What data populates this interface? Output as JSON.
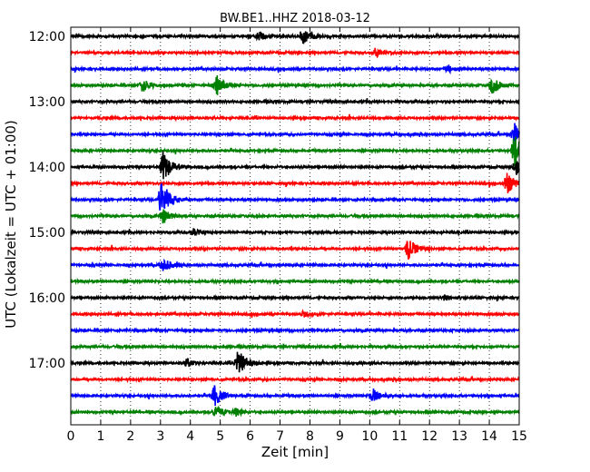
{
  "chart_data": {
    "type": "line",
    "subtype": "helicorder",
    "title": "BW.BE1..HHZ 2018-03-12",
    "xlabel": "Zeit  [min]",
    "ylabel": "UTC (Lokalzeit = UTC + 01:00)",
    "xlim": [
      0,
      15
    ],
    "x_ticks": [
      0,
      1,
      2,
      3,
      4,
      5,
      6,
      7,
      8,
      9,
      10,
      11,
      12,
      13,
      14,
      15
    ],
    "y_tick_labels": [
      "12:00",
      "13:00",
      "14:00",
      "15:00",
      "16:00",
      "17:00"
    ],
    "trace_start_times": [
      "12:00",
      "12:15",
      "12:30",
      "12:45",
      "13:00",
      "13:15",
      "13:30",
      "13:45",
      "14:00",
      "14:15",
      "14:30",
      "14:45",
      "15:00",
      "15:15",
      "15:30",
      "15:45",
      "16:00",
      "16:15",
      "16:30",
      "16:45",
      "17:00",
      "17:15",
      "17:30",
      "17:45"
    ],
    "trace_colors": [
      "#000000",
      "#ff0000",
      "#0000ff",
      "#008000"
    ],
    "grid": "vertical dotted lines at each minute",
    "events": [
      {
        "trace": 0,
        "minute": 6.3,
        "amplitude": 0.6
      },
      {
        "trace": 0,
        "minute": 7.8,
        "amplitude": 1.0
      },
      {
        "trace": 1,
        "minute": 10.2,
        "amplitude": 0.55
      },
      {
        "trace": 2,
        "minute": 12.6,
        "amplitude": 0.5
      },
      {
        "trace": 3,
        "minute": 2.4,
        "amplitude": 0.8
      },
      {
        "trace": 3,
        "minute": 4.9,
        "amplitude": 1.2
      },
      {
        "trace": 3,
        "minute": 14.1,
        "amplitude": 1.1
      },
      {
        "trace": 6,
        "minute": 14.85,
        "amplitude": 1.3
      },
      {
        "trace": 7,
        "minute": 14.85,
        "amplitude": 2.0
      },
      {
        "trace": 8,
        "minute": 3.1,
        "amplitude": 2.0
      },
      {
        "trace": 8,
        "minute": 14.9,
        "amplitude": 1.2
      },
      {
        "trace": 9,
        "minute": 14.6,
        "amplitude": 1.4
      },
      {
        "trace": 10,
        "minute": 3.05,
        "amplitude": 2.4
      },
      {
        "trace": 11,
        "minute": 3.1,
        "amplitude": 0.9
      },
      {
        "trace": 12,
        "minute": 4.1,
        "amplitude": 0.45
      },
      {
        "trace": 13,
        "minute": 11.3,
        "amplitude": 1.4
      },
      {
        "trace": 14,
        "minute": 3.1,
        "amplitude": 0.8
      },
      {
        "trace": 16,
        "minute": 12.5,
        "amplitude": 0.35
      },
      {
        "trace": 17,
        "minute": 7.8,
        "amplitude": 0.35
      },
      {
        "trace": 20,
        "minute": 3.9,
        "amplitude": 0.5
      },
      {
        "trace": 20,
        "minute": 5.6,
        "amplitude": 2.0
      },
      {
        "trace": 22,
        "minute": 4.8,
        "amplitude": 1.4
      },
      {
        "trace": 22,
        "minute": 10.1,
        "amplitude": 0.9
      },
      {
        "trace": 23,
        "minute": 5.5,
        "amplitude": 0.5
      },
      {
        "trace": 23,
        "minute": 4.85,
        "amplitude": 0.7
      }
    ]
  }
}
